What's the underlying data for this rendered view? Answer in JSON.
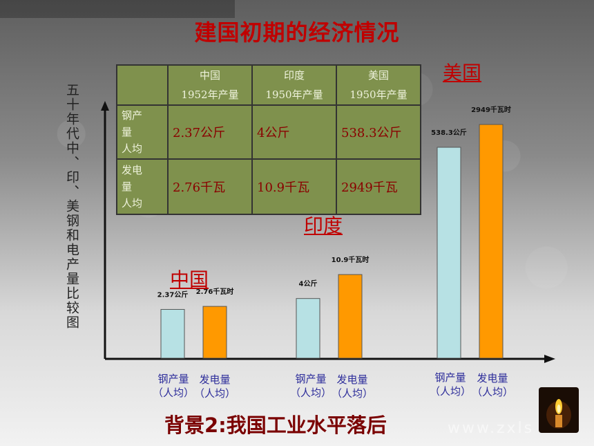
{
  "slide": {
    "title": "建国初期的经济情况",
    "vertical_label": "五十年代中、印、美钢和电产量比较图",
    "bottom_title": "背景2:我国工业水平落后",
    "watermark": "www.zxls"
  },
  "table": {
    "headers": [
      "",
      "中国\n1952年产量",
      "印度\n1950年产量",
      "美国\n1950年产量"
    ],
    "rows": [
      {
        "label": "钢产\n量\n人均",
        "values": [
          "2.37公斤",
          "4公斤",
          "538.3公斤"
        ]
      },
      {
        "label": "发电\n量\n人均",
        "values": [
          "2.76千瓦",
          "10.9千瓦",
          "2949千瓦"
        ]
      }
    ]
  },
  "chart_data": {
    "type": "bar",
    "categories": [
      "中国",
      "印度",
      "美国"
    ],
    "series": [
      {
        "name": "钢产量（人均）",
        "values": [
          2.37,
          4,
          538.3
        ],
        "color": "#b7e1e4",
        "labels": [
          "2.37公斤",
          "4公斤",
          "538.3公斤"
        ]
      },
      {
        "name": "发电量（人均）",
        "values": [
          2.76,
          10.9,
          2949
        ],
        "color": "#ff9900",
        "labels": [
          "2.76千瓦时",
          "10.9千瓦时",
          "2949千瓦时"
        ]
      }
    ],
    "category_labels": [
      "钢产量\n（人均）",
      "发电量\n（人均）"
    ],
    "scale": "not to scale (illustrative)",
    "grid": false
  },
  "colors": {
    "title": "#c00000",
    "steel_bar": "#b7e1e4",
    "power_bar": "#ff9900",
    "table_bg": "#7f914d"
  }
}
